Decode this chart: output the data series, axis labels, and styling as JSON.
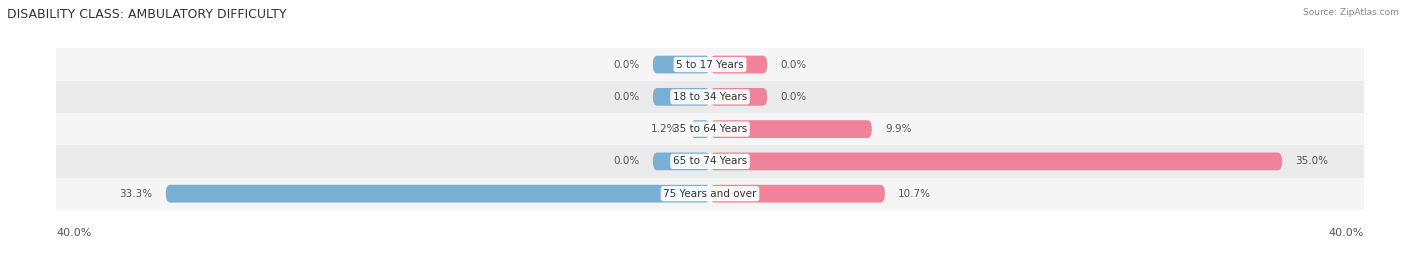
{
  "title": "DISABILITY CLASS: AMBULATORY DIFFICULTY",
  "source": "Source: ZipAtlas.com",
  "categories": [
    "5 to 17 Years",
    "18 to 34 Years",
    "35 to 64 Years",
    "65 to 74 Years",
    "75 Years and over"
  ],
  "male_values": [
    0.0,
    0.0,
    1.2,
    0.0,
    33.3
  ],
  "female_values": [
    0.0,
    0.0,
    9.9,
    35.0,
    10.7
  ],
  "male_color": "#7bafd4",
  "female_color": "#f0829a",
  "row_bg_colors": [
    "#f5f5f5",
    "#ebebeb"
  ],
  "x_max": 40.0,
  "x_min": -40.0,
  "axis_label_left": "40.0%",
  "axis_label_right": "40.0%",
  "title_fontsize": 9,
  "label_fontsize": 7.5,
  "tick_fontsize": 8,
  "bar_height": 0.55,
  "stub_value": 3.5,
  "figsize": [
    14.06,
    2.69
  ],
  "dpi": 100
}
